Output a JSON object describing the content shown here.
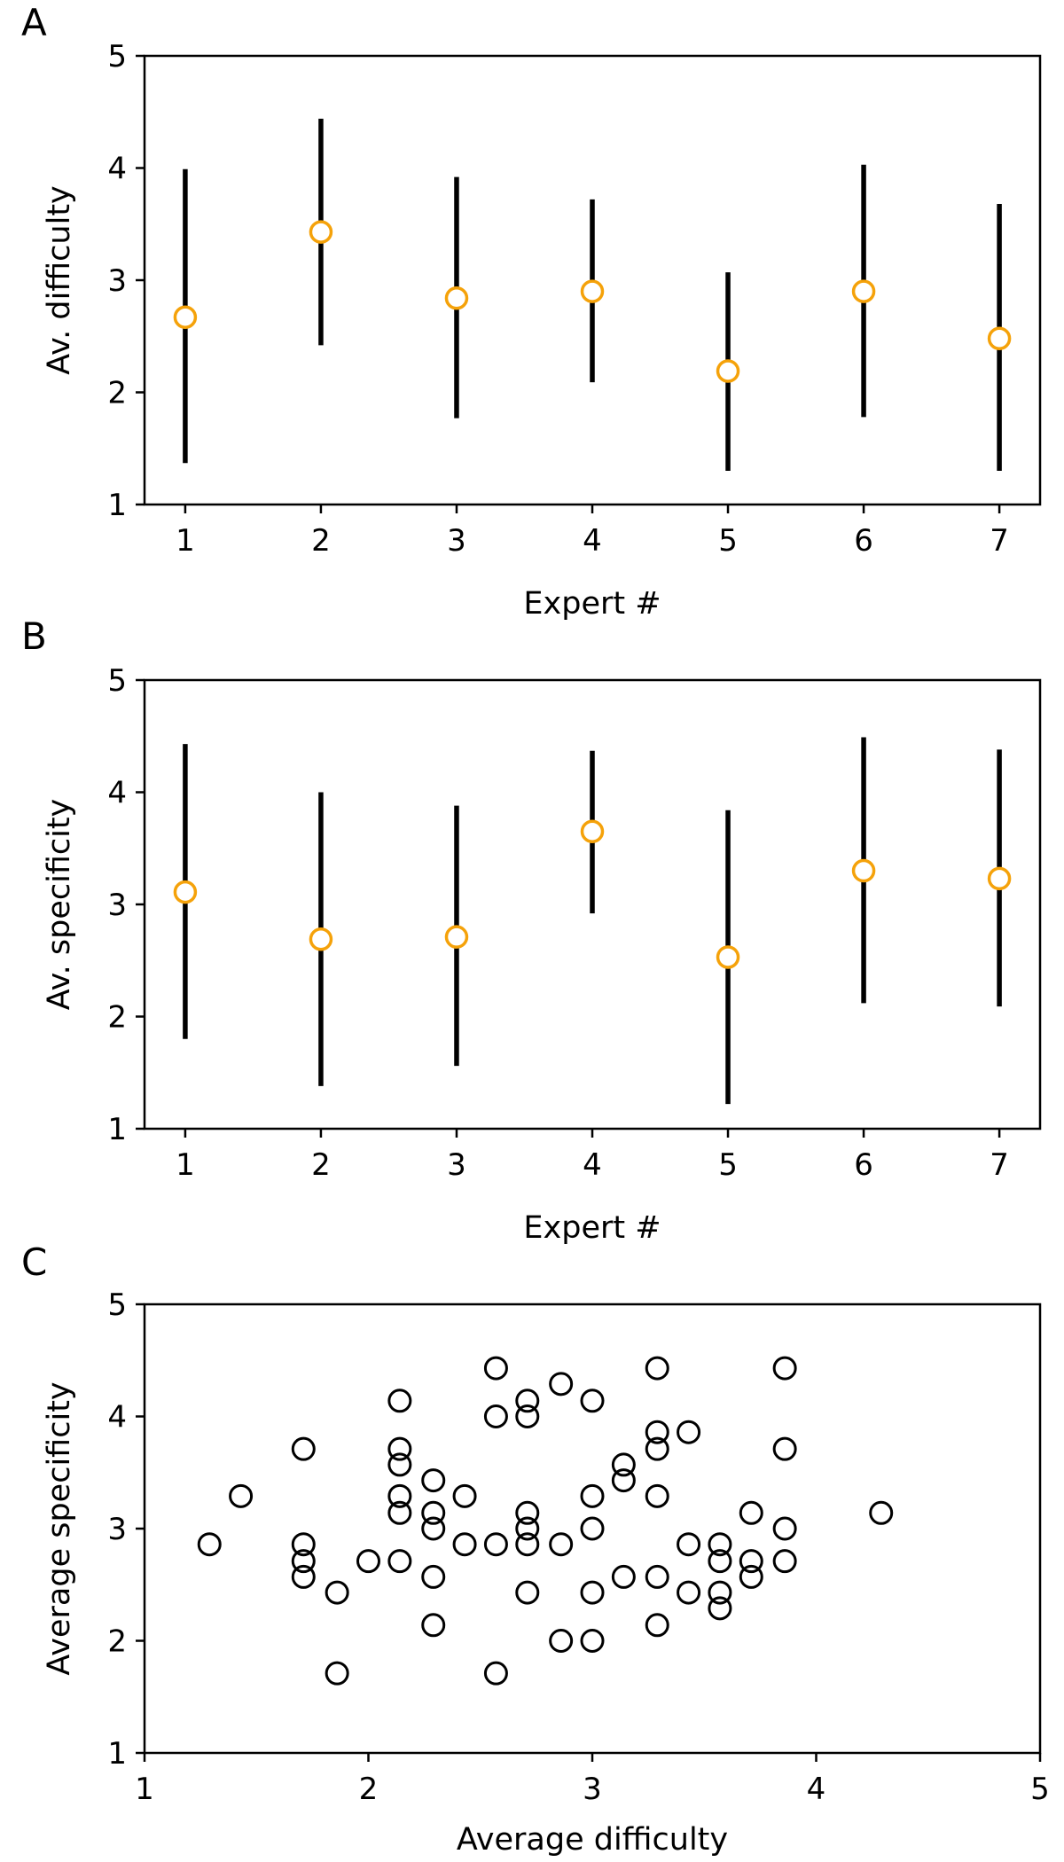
{
  "colors": {
    "marker": "#F5A20A",
    "bars": "#000000",
    "scatter": "#000000"
  },
  "chart_data": [
    {
      "panel": "A",
      "type": "errorbar",
      "title": "",
      "xlabel": "Expert #",
      "ylabel": "Av. difficulty",
      "xlim": [
        0.7,
        7.3
      ],
      "ylim": [
        1,
        5
      ],
      "xticks": [
        "1",
        "2",
        "3",
        "4",
        "5",
        "6",
        "7"
      ],
      "yticks": [
        "1",
        "2",
        "3",
        "4",
        "5"
      ],
      "points": [
        {
          "x": 1,
          "y": 2.67,
          "lo": 1.37,
          "hi": 3.99
        },
        {
          "x": 2,
          "y": 3.43,
          "lo": 2.42,
          "hi": 4.44
        },
        {
          "x": 3,
          "y": 2.84,
          "lo": 1.77,
          "hi": 3.92
        },
        {
          "x": 4,
          "y": 2.9,
          "lo": 2.09,
          "hi": 3.72
        },
        {
          "x": 5,
          "y": 2.19,
          "lo": 1.3,
          "hi": 3.07
        },
        {
          "x": 6,
          "y": 2.9,
          "lo": 1.78,
          "hi": 4.03
        },
        {
          "x": 7,
          "y": 2.48,
          "lo": 1.3,
          "hi": 3.68
        }
      ]
    },
    {
      "panel": "B",
      "type": "errorbar",
      "title": "",
      "xlabel": "Expert #",
      "ylabel": "Av. specificity",
      "xlim": [
        0.7,
        7.3
      ],
      "ylim": [
        1,
        5
      ],
      "xticks": [
        "1",
        "2",
        "3",
        "4",
        "5",
        "6",
        "7"
      ],
      "yticks": [
        "1",
        "2",
        "3",
        "4",
        "5"
      ],
      "points": [
        {
          "x": 1,
          "y": 3.11,
          "lo": 1.8,
          "hi": 4.43
        },
        {
          "x": 2,
          "y": 2.69,
          "lo": 1.38,
          "hi": 4.0
        },
        {
          "x": 3,
          "y": 2.71,
          "lo": 1.56,
          "hi": 3.88
        },
        {
          "x": 4,
          "y": 3.65,
          "lo": 2.92,
          "hi": 4.37
        },
        {
          "x": 5,
          "y": 2.53,
          "lo": 1.22,
          "hi": 3.84
        },
        {
          "x": 6,
          "y": 3.3,
          "lo": 2.12,
          "hi": 4.49
        },
        {
          "x": 7,
          "y": 3.23,
          "lo": 2.09,
          "hi": 4.38
        }
      ]
    },
    {
      "panel": "C",
      "type": "scatter",
      "title": "",
      "xlabel": "Average difficulty",
      "ylabel": "Average specificity",
      "xlim": [
        1,
        5
      ],
      "ylim": [
        1,
        5
      ],
      "xticks": [
        "1",
        "2",
        "3",
        "4",
        "5"
      ],
      "yticks": [
        "1",
        "2",
        "3",
        "4",
        "5"
      ],
      "points": [
        {
          "x": 1.29,
          "y": 2.86
        },
        {
          "x": 1.43,
          "y": 3.29
        },
        {
          "x": 1.71,
          "y": 3.71
        },
        {
          "x": 1.71,
          "y": 2.86
        },
        {
          "x": 1.71,
          "y": 2.71
        },
        {
          "x": 1.71,
          "y": 2.57
        },
        {
          "x": 1.86,
          "y": 2.43
        },
        {
          "x": 1.86,
          "y": 1.71
        },
        {
          "x": 2.0,
          "y": 2.71
        },
        {
          "x": 2.14,
          "y": 4.14
        },
        {
          "x": 2.14,
          "y": 3.71
        },
        {
          "x": 2.14,
          "y": 3.57
        },
        {
          "x": 2.14,
          "y": 3.29
        },
        {
          "x": 2.14,
          "y": 3.14
        },
        {
          "x": 2.14,
          "y": 2.71
        },
        {
          "x": 2.29,
          "y": 3.43
        },
        {
          "x": 2.29,
          "y": 3.14
        },
        {
          "x": 2.29,
          "y": 3.0
        },
        {
          "x": 2.29,
          "y": 2.57
        },
        {
          "x": 2.29,
          "y": 2.14
        },
        {
          "x": 2.43,
          "y": 3.29
        },
        {
          "x": 2.43,
          "y": 2.86
        },
        {
          "x": 2.57,
          "y": 4.43
        },
        {
          "x": 2.57,
          "y": 4.0
        },
        {
          "x": 2.57,
          "y": 2.86
        },
        {
          "x": 2.57,
          "y": 1.71
        },
        {
          "x": 2.71,
          "y": 4.14
        },
        {
          "x": 2.71,
          "y": 4.0
        },
        {
          "x": 2.71,
          "y": 3.14
        },
        {
          "x": 2.71,
          "y": 3.0
        },
        {
          "x": 2.71,
          "y": 2.86
        },
        {
          "x": 2.71,
          "y": 2.43
        },
        {
          "x": 2.86,
          "y": 4.29
        },
        {
          "x": 2.86,
          "y": 2.86
        },
        {
          "x": 2.86,
          "y": 2.0
        },
        {
          "x": 3.0,
          "y": 4.14
        },
        {
          "x": 3.0,
          "y": 3.29
        },
        {
          "x": 3.0,
          "y": 3.0
        },
        {
          "x": 3.0,
          "y": 2.43
        },
        {
          "x": 3.0,
          "y": 2.0
        },
        {
          "x": 3.14,
          "y": 3.57
        },
        {
          "x": 3.14,
          "y": 3.43
        },
        {
          "x": 3.14,
          "y": 2.57
        },
        {
          "x": 3.29,
          "y": 4.43
        },
        {
          "x": 3.29,
          "y": 3.86
        },
        {
          "x": 3.29,
          "y": 3.71
        },
        {
          "x": 3.29,
          "y": 3.29
        },
        {
          "x": 3.29,
          "y": 2.57
        },
        {
          "x": 3.29,
          "y": 2.14
        },
        {
          "x": 3.43,
          "y": 3.86
        },
        {
          "x": 3.43,
          "y": 2.86
        },
        {
          "x": 3.43,
          "y": 2.43
        },
        {
          "x": 3.57,
          "y": 2.86
        },
        {
          "x": 3.57,
          "y": 2.71
        },
        {
          "x": 3.57,
          "y": 2.43
        },
        {
          "x": 3.57,
          "y": 2.29
        },
        {
          "x": 3.71,
          "y": 3.14
        },
        {
          "x": 3.71,
          "y": 2.71
        },
        {
          "x": 3.71,
          "y": 2.57
        },
        {
          "x": 3.86,
          "y": 4.43
        },
        {
          "x": 3.86,
          "y": 3.71
        },
        {
          "x": 3.86,
          "y": 3.0
        },
        {
          "x": 3.86,
          "y": 2.71
        },
        {
          "x": 4.29,
          "y": 3.14
        }
      ]
    }
  ]
}
